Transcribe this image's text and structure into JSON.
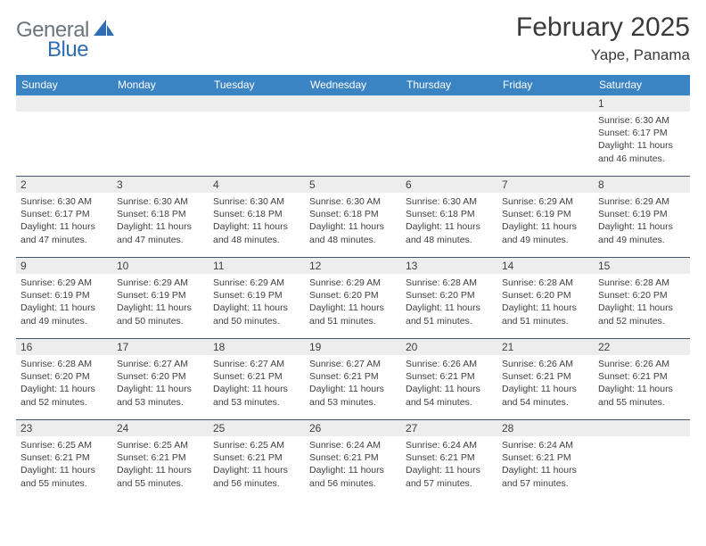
{
  "logo": {
    "word1": "General",
    "word2": "Blue",
    "color1": "#6c757d",
    "color2": "#2d6eb5"
  },
  "title": "February 2025",
  "location": "Yape, Panama",
  "colors": {
    "header_bar": "#3b84c4",
    "daynum_bg": "#ededed",
    "rule": "#475569",
    "text": "#404040",
    "title_text": "#3a3a3a"
  },
  "day_names": [
    "Sunday",
    "Monday",
    "Tuesday",
    "Wednesday",
    "Thursday",
    "Friday",
    "Saturday"
  ],
  "weeks": [
    [
      {
        "n": "",
        "sunrise": "",
        "sunset": "",
        "daylight1": "",
        "daylight2": ""
      },
      {
        "n": "",
        "sunrise": "",
        "sunset": "",
        "daylight1": "",
        "daylight2": ""
      },
      {
        "n": "",
        "sunrise": "",
        "sunset": "",
        "daylight1": "",
        "daylight2": ""
      },
      {
        "n": "",
        "sunrise": "",
        "sunset": "",
        "daylight1": "",
        "daylight2": ""
      },
      {
        "n": "",
        "sunrise": "",
        "sunset": "",
        "daylight1": "",
        "daylight2": ""
      },
      {
        "n": "",
        "sunrise": "",
        "sunset": "",
        "daylight1": "",
        "daylight2": ""
      },
      {
        "n": "1",
        "sunrise": "Sunrise: 6:30 AM",
        "sunset": "Sunset: 6:17 PM",
        "daylight1": "Daylight: 11 hours",
        "daylight2": "and 46 minutes."
      }
    ],
    [
      {
        "n": "2",
        "sunrise": "Sunrise: 6:30 AM",
        "sunset": "Sunset: 6:17 PM",
        "daylight1": "Daylight: 11 hours",
        "daylight2": "and 47 minutes."
      },
      {
        "n": "3",
        "sunrise": "Sunrise: 6:30 AM",
        "sunset": "Sunset: 6:18 PM",
        "daylight1": "Daylight: 11 hours",
        "daylight2": "and 47 minutes."
      },
      {
        "n": "4",
        "sunrise": "Sunrise: 6:30 AM",
        "sunset": "Sunset: 6:18 PM",
        "daylight1": "Daylight: 11 hours",
        "daylight2": "and 48 minutes."
      },
      {
        "n": "5",
        "sunrise": "Sunrise: 6:30 AM",
        "sunset": "Sunset: 6:18 PM",
        "daylight1": "Daylight: 11 hours",
        "daylight2": "and 48 minutes."
      },
      {
        "n": "6",
        "sunrise": "Sunrise: 6:30 AM",
        "sunset": "Sunset: 6:18 PM",
        "daylight1": "Daylight: 11 hours",
        "daylight2": "and 48 minutes."
      },
      {
        "n": "7",
        "sunrise": "Sunrise: 6:29 AM",
        "sunset": "Sunset: 6:19 PM",
        "daylight1": "Daylight: 11 hours",
        "daylight2": "and 49 minutes."
      },
      {
        "n": "8",
        "sunrise": "Sunrise: 6:29 AM",
        "sunset": "Sunset: 6:19 PM",
        "daylight1": "Daylight: 11 hours",
        "daylight2": "and 49 minutes."
      }
    ],
    [
      {
        "n": "9",
        "sunrise": "Sunrise: 6:29 AM",
        "sunset": "Sunset: 6:19 PM",
        "daylight1": "Daylight: 11 hours",
        "daylight2": "and 49 minutes."
      },
      {
        "n": "10",
        "sunrise": "Sunrise: 6:29 AM",
        "sunset": "Sunset: 6:19 PM",
        "daylight1": "Daylight: 11 hours",
        "daylight2": "and 50 minutes."
      },
      {
        "n": "11",
        "sunrise": "Sunrise: 6:29 AM",
        "sunset": "Sunset: 6:19 PM",
        "daylight1": "Daylight: 11 hours",
        "daylight2": "and 50 minutes."
      },
      {
        "n": "12",
        "sunrise": "Sunrise: 6:29 AM",
        "sunset": "Sunset: 6:20 PM",
        "daylight1": "Daylight: 11 hours",
        "daylight2": "and 51 minutes."
      },
      {
        "n": "13",
        "sunrise": "Sunrise: 6:28 AM",
        "sunset": "Sunset: 6:20 PM",
        "daylight1": "Daylight: 11 hours",
        "daylight2": "and 51 minutes."
      },
      {
        "n": "14",
        "sunrise": "Sunrise: 6:28 AM",
        "sunset": "Sunset: 6:20 PM",
        "daylight1": "Daylight: 11 hours",
        "daylight2": "and 51 minutes."
      },
      {
        "n": "15",
        "sunrise": "Sunrise: 6:28 AM",
        "sunset": "Sunset: 6:20 PM",
        "daylight1": "Daylight: 11 hours",
        "daylight2": "and 52 minutes."
      }
    ],
    [
      {
        "n": "16",
        "sunrise": "Sunrise: 6:28 AM",
        "sunset": "Sunset: 6:20 PM",
        "daylight1": "Daylight: 11 hours",
        "daylight2": "and 52 minutes."
      },
      {
        "n": "17",
        "sunrise": "Sunrise: 6:27 AM",
        "sunset": "Sunset: 6:20 PM",
        "daylight1": "Daylight: 11 hours",
        "daylight2": "and 53 minutes."
      },
      {
        "n": "18",
        "sunrise": "Sunrise: 6:27 AM",
        "sunset": "Sunset: 6:21 PM",
        "daylight1": "Daylight: 11 hours",
        "daylight2": "and 53 minutes."
      },
      {
        "n": "19",
        "sunrise": "Sunrise: 6:27 AM",
        "sunset": "Sunset: 6:21 PM",
        "daylight1": "Daylight: 11 hours",
        "daylight2": "and 53 minutes."
      },
      {
        "n": "20",
        "sunrise": "Sunrise: 6:26 AM",
        "sunset": "Sunset: 6:21 PM",
        "daylight1": "Daylight: 11 hours",
        "daylight2": "and 54 minutes."
      },
      {
        "n": "21",
        "sunrise": "Sunrise: 6:26 AM",
        "sunset": "Sunset: 6:21 PM",
        "daylight1": "Daylight: 11 hours",
        "daylight2": "and 54 minutes."
      },
      {
        "n": "22",
        "sunrise": "Sunrise: 6:26 AM",
        "sunset": "Sunset: 6:21 PM",
        "daylight1": "Daylight: 11 hours",
        "daylight2": "and 55 minutes."
      }
    ],
    [
      {
        "n": "23",
        "sunrise": "Sunrise: 6:25 AM",
        "sunset": "Sunset: 6:21 PM",
        "daylight1": "Daylight: 11 hours",
        "daylight2": "and 55 minutes."
      },
      {
        "n": "24",
        "sunrise": "Sunrise: 6:25 AM",
        "sunset": "Sunset: 6:21 PM",
        "daylight1": "Daylight: 11 hours",
        "daylight2": "and 55 minutes."
      },
      {
        "n": "25",
        "sunrise": "Sunrise: 6:25 AM",
        "sunset": "Sunset: 6:21 PM",
        "daylight1": "Daylight: 11 hours",
        "daylight2": "and 56 minutes."
      },
      {
        "n": "26",
        "sunrise": "Sunrise: 6:24 AM",
        "sunset": "Sunset: 6:21 PM",
        "daylight1": "Daylight: 11 hours",
        "daylight2": "and 56 minutes."
      },
      {
        "n": "27",
        "sunrise": "Sunrise: 6:24 AM",
        "sunset": "Sunset: 6:21 PM",
        "daylight1": "Daylight: 11 hours",
        "daylight2": "and 57 minutes."
      },
      {
        "n": "28",
        "sunrise": "Sunrise: 6:24 AM",
        "sunset": "Sunset: 6:21 PM",
        "daylight1": "Daylight: 11 hours",
        "daylight2": "and 57 minutes."
      },
      {
        "n": "",
        "sunrise": "",
        "sunset": "",
        "daylight1": "",
        "daylight2": ""
      }
    ]
  ]
}
